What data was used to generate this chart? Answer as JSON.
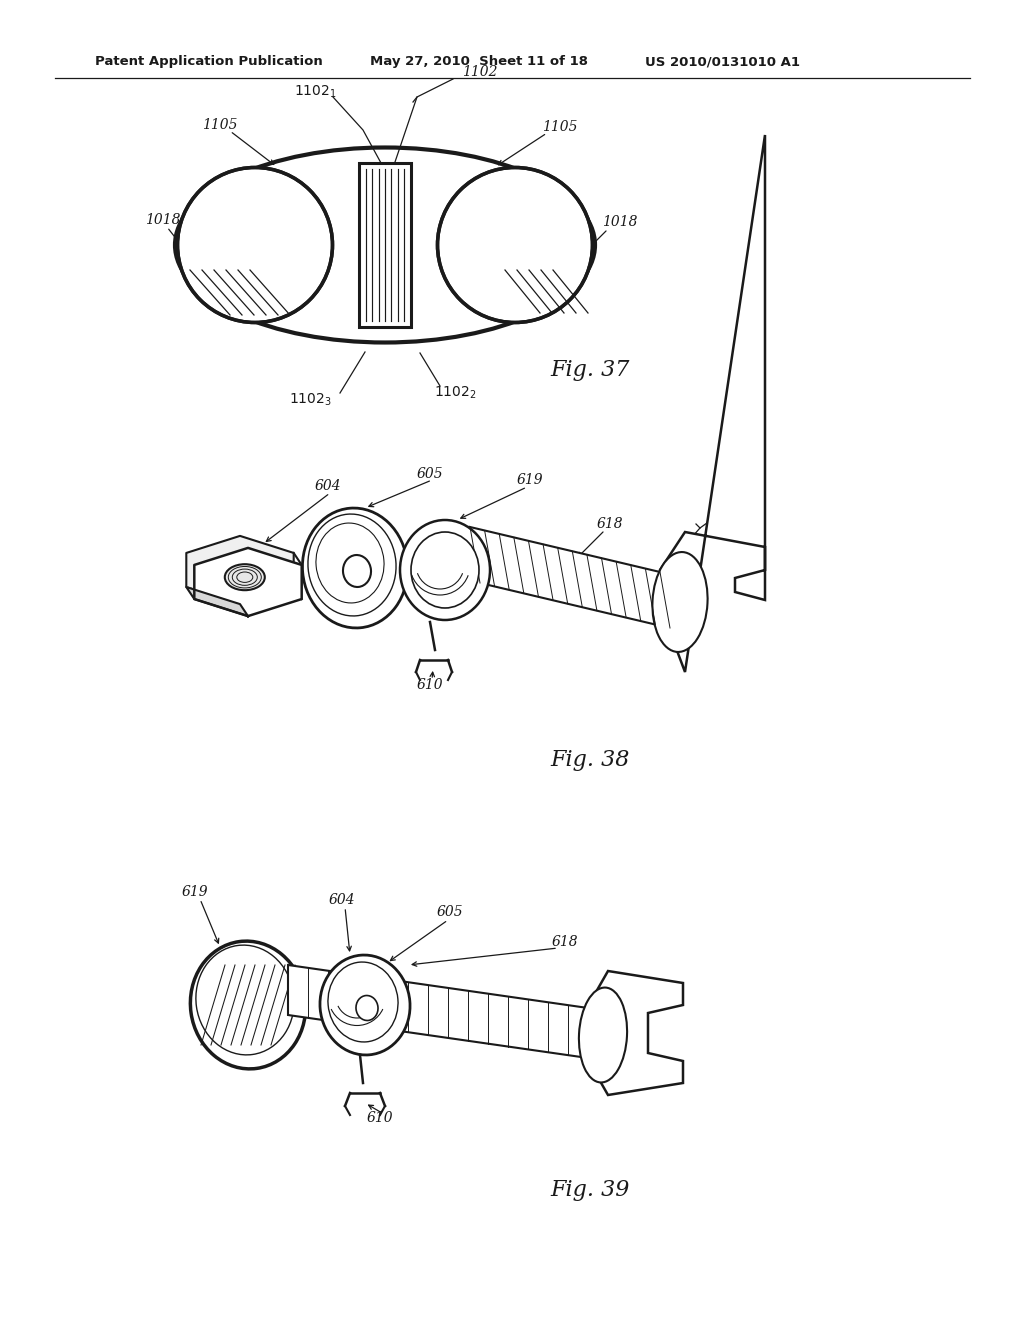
{
  "bg_color": "#ffffff",
  "line_color": "#1a1a1a",
  "fig_width": 10.24,
  "fig_height": 13.2,
  "header_text": "Patent Application Publication",
  "header_date": "May 27, 2010  Sheet 11 of 18",
  "header_patent": "US 2010/0131010 A1"
}
